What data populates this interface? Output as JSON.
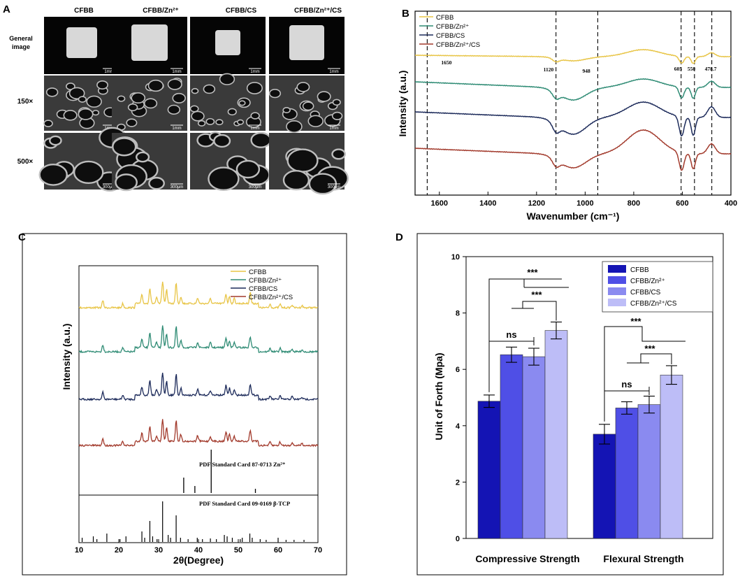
{
  "panel_letters": {
    "a": "A",
    "b": "B",
    "c": "C",
    "d": "D"
  },
  "panel_a": {
    "columns": [
      "CFBB",
      "CFBB/Zn²⁺",
      "CFBB/CS",
      "CFBB/Zn²⁺/CS"
    ],
    "rows": [
      "General image",
      "150×",
      "500×"
    ],
    "row1_scale": "1mm",
    "row2_scale": "1mm",
    "row3_scale": "300μm"
  },
  "chart_data": [
    {
      "id": "B",
      "type": "line",
      "xlabel": "Wavenumber (cm⁻¹)",
      "ylabel": "Intensity (a.u.)",
      "xlim": [
        1700,
        400
      ],
      "xticks": [
        1600,
        1400,
        1200,
        1000,
        800,
        600,
        400
      ],
      "legend": [
        "CFBB",
        "CFBB/Zn²⁺",
        "CFBB/CS",
        "CFBB/Zn²⁺/CS"
      ],
      "colors": [
        "#e8c547",
        "#2e8b74",
        "#1c2a5a",
        "#a23a2c"
      ],
      "peak_markers": [
        1650,
        1120,
        948,
        605,
        550,
        478.7
      ],
      "peak_labels": [
        "1650",
        "1120",
        "948",
        "605",
        "550",
        "478.7"
      ]
    },
    {
      "id": "C",
      "type": "line",
      "xlabel": "2θ(Degree)",
      "ylabel": "Intensity (a.u.)",
      "xlim": [
        10,
        70
      ],
      "xticks": [
        10,
        20,
        30,
        40,
        50,
        60,
        70
      ],
      "legend": [
        "CFBB",
        "CFBB/Zn²⁺",
        "CFBB/CS",
        "CFBB/Zn²⁺/CS"
      ],
      "colors": [
        "#e8c547",
        "#2e8b74",
        "#1c2a5a",
        "#a23a2c"
      ],
      "ref1_label": "PDF Standard Card 87-0713 Zn²⁺",
      "ref2_label": "PDF Standard Card 09-0169 β-TCP"
    },
    {
      "id": "D",
      "type": "bar",
      "title": "",
      "xlabel": "",
      "ylabel": "Unit of Forth (Mpa)",
      "ylim": [
        0,
        10
      ],
      "yticks": [
        0,
        2,
        4,
        6,
        8,
        10
      ],
      "categories": [
        "Compressive Strength",
        "Flexural Strength"
      ],
      "colors": [
        "#1414b4",
        "#4f4fe6",
        "#8a8af0",
        "#bdbdf7"
      ],
      "series": [
        {
          "name": "CFBB",
          "values": [
            4.87,
            3.7
          ],
          "errors": [
            0.22,
            0.35
          ]
        },
        {
          "name": "CFBB/Zn²⁺",
          "values": [
            6.52,
            4.63
          ],
          "errors": [
            0.27,
            0.22
          ]
        },
        {
          "name": "CFBB/CS",
          "values": [
            6.45,
            4.75
          ],
          "errors": [
            0.3,
            0.3
          ]
        },
        {
          "name": "CFBB/Zn²⁺/CS",
          "values": [
            7.38,
            5.8
          ],
          "errors": [
            0.3,
            0.33
          ]
        }
      ],
      "sig_labels": [
        "***",
        "***",
        "ns",
        "***",
        "***",
        "ns"
      ]
    }
  ]
}
